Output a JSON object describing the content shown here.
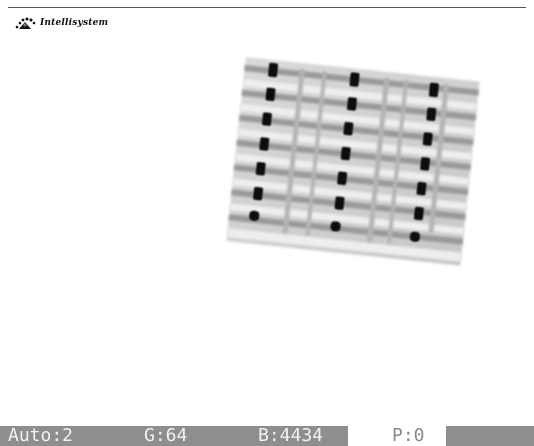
{
  "branding": {
    "logo_text": "Intellisystem",
    "logo_icon": "dots-cluster-logo-icon"
  },
  "viewer": {
    "image_icon": "gel-electrophoresis-image"
  },
  "status_bar": {
    "auto": "Auto:2",
    "gain": "G:64",
    "brightness": "B:4434",
    "p": "P:0"
  }
}
